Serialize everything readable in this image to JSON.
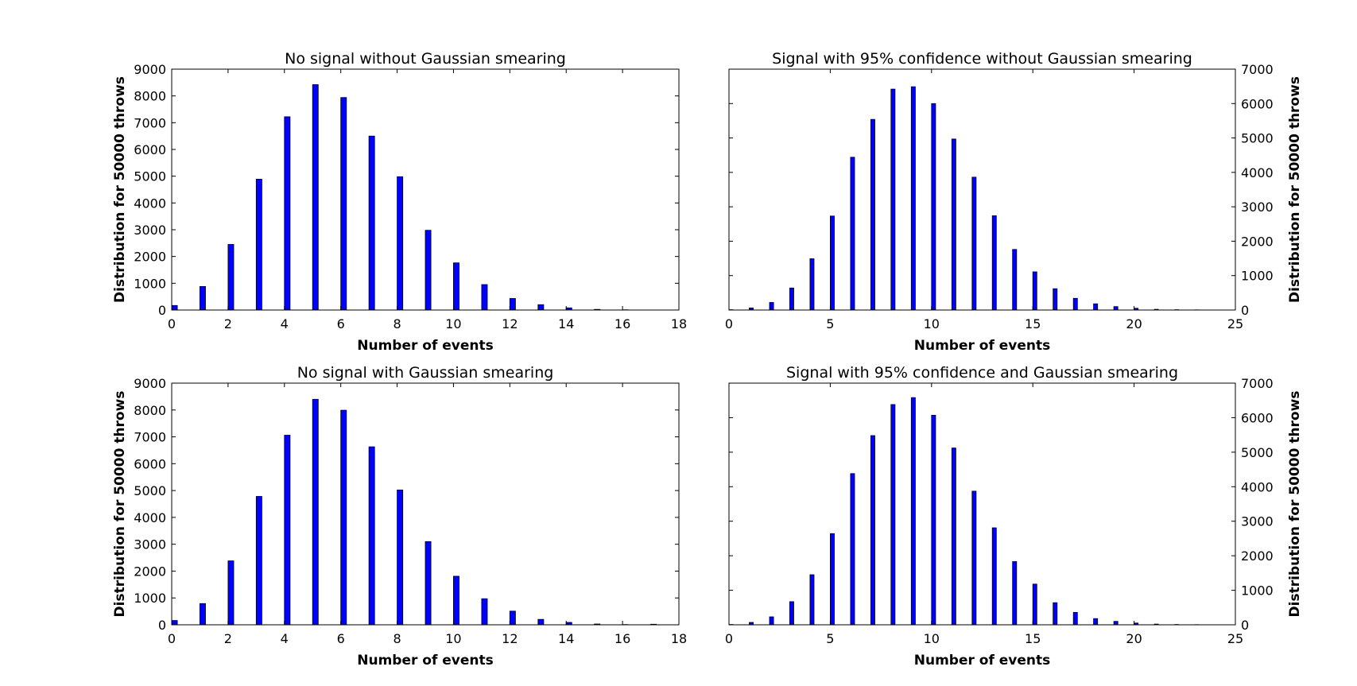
{
  "chart_data": [
    {
      "type": "bar",
      "title": "No signal without Gaussian smearing",
      "xlabel": "Number of events",
      "ylabel": "Distribution for 50000 throws",
      "ylabel_side": "left",
      "xlim": [
        0,
        18
      ],
      "ylim": [
        0,
        9000
      ],
      "xticks": [
        0,
        2,
        4,
        6,
        8,
        10,
        12,
        14,
        16,
        18
      ],
      "yticks": [
        0,
        1000,
        2000,
        3000,
        4000,
        5000,
        6000,
        7000,
        8000,
        9000
      ],
      "x": [
        0,
        1,
        2,
        3,
        4,
        5,
        6,
        7,
        8,
        9,
        10,
        11,
        12,
        13,
        14,
        15,
        16,
        17
      ],
      "values": [
        170,
        880,
        2450,
        4890,
        7220,
        8420,
        7940,
        6500,
        4980,
        2980,
        1760,
        950,
        430,
        200,
        80,
        25,
        8,
        3
      ],
      "color": "#0000ff"
    },
    {
      "type": "bar",
      "title": "Signal with 95% confidence without Gaussian smearing",
      "xlabel": "Number of events",
      "ylabel": "Distribution for 50000 throws",
      "ylabel_side": "right",
      "xlim": [
        0,
        25
      ],
      "ylim": [
        0,
        7000
      ],
      "xticks": [
        0,
        5,
        10,
        15,
        20,
        25
      ],
      "yticks": [
        0,
        1000,
        2000,
        3000,
        4000,
        5000,
        6000,
        7000
      ],
      "x": [
        0,
        1,
        2,
        3,
        4,
        5,
        6,
        7,
        8,
        9,
        10,
        11,
        12,
        13,
        14,
        15,
        16,
        17,
        18,
        19,
        20,
        21,
        22,
        23,
        24
      ],
      "values": [
        10,
        60,
        220,
        640,
        1490,
        2730,
        4440,
        5540,
        6420,
        6490,
        6000,
        4970,
        3860,
        2740,
        1760,
        1110,
        620,
        340,
        180,
        100,
        50,
        20,
        10,
        5,
        2
      ],
      "color": "#0000ff"
    },
    {
      "type": "bar",
      "title": "No signal with Gaussian smearing",
      "xlabel": "Number of events",
      "ylabel": "Distribution for 50000 throws",
      "ylabel_side": "left",
      "xlim": [
        0,
        18
      ],
      "ylim": [
        0,
        9000
      ],
      "xticks": [
        0,
        2,
        4,
        6,
        8,
        10,
        12,
        14,
        16,
        18
      ],
      "yticks": [
        0,
        1000,
        2000,
        3000,
        4000,
        5000,
        6000,
        7000,
        8000,
        9000
      ],
      "x": [
        0,
        1,
        2,
        3,
        4,
        5,
        6,
        7,
        8,
        9,
        10,
        11,
        12,
        13,
        14,
        15,
        16,
        17
      ],
      "values": [
        160,
        790,
        2380,
        4780,
        7060,
        8400,
        7990,
        6630,
        5020,
        3100,
        1810,
        970,
        510,
        200,
        90,
        30,
        10,
        20
      ],
      "color": "#0000ff"
    },
    {
      "type": "bar",
      "title": "Signal with 95% confidence and Gaussian smearing",
      "xlabel": "Number of events",
      "ylabel": "Distribution for 50000 throws",
      "ylabel_side": "right",
      "xlim": [
        0,
        25
      ],
      "ylim": [
        0,
        7000
      ],
      "xticks": [
        0,
        5,
        10,
        15,
        20,
        25
      ],
      "yticks": [
        0,
        1000,
        2000,
        3000,
        4000,
        5000,
        6000,
        7000
      ],
      "x": [
        0,
        1,
        2,
        3,
        4,
        5,
        6,
        7,
        8,
        9,
        10,
        11,
        12,
        13,
        14,
        15,
        16,
        17,
        18,
        19,
        20,
        21,
        22,
        23,
        24
      ],
      "values": [
        10,
        70,
        230,
        670,
        1450,
        2640,
        4380,
        5480,
        6380,
        6580,
        6070,
        5120,
        3870,
        2810,
        1830,
        1180,
        640,
        360,
        180,
        100,
        50,
        20,
        10,
        5,
        2
      ],
      "color": "#0000ff"
    }
  ]
}
